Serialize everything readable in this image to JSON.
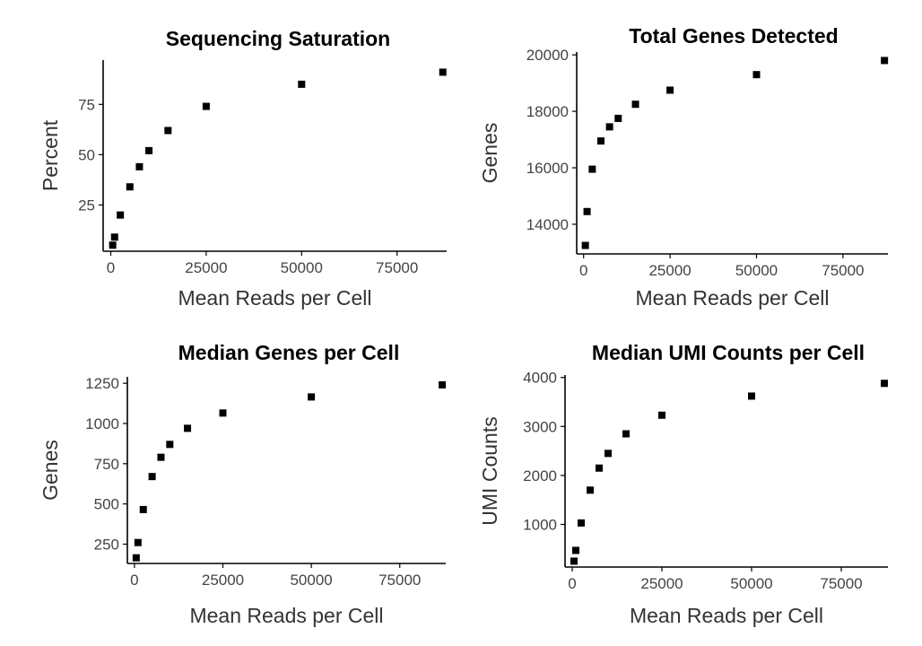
{
  "chart_data": [
    {
      "type": "scatter",
      "title": "Sequencing Saturation",
      "xlabel": "Mean Reads per Cell",
      "ylabel": "Percent",
      "xlim": [
        -2000,
        88000
      ],
      "ylim": [
        2,
        97
      ],
      "xticks": [
        0,
        25000,
        50000,
        75000
      ],
      "xtick_labels": [
        "0",
        "25000",
        "50000",
        "75000"
      ],
      "yticks": [
        25,
        50,
        75
      ],
      "ytick_labels": [
        "25",
        "50",
        "75"
      ],
      "grid": false,
      "x": [
        500,
        1000,
        2500,
        5000,
        7500,
        10000,
        15000,
        25000,
        50000,
        87000
      ],
      "y": [
        5,
        9,
        20,
        34,
        44,
        52,
        62,
        74,
        85,
        91
      ]
    },
    {
      "type": "scatter",
      "title": "Total Genes Detected",
      "xlabel": "Mean Reads per Cell",
      "ylabel": "Genes",
      "xlim": [
        -2000,
        88000
      ],
      "ylim": [
        12950,
        20100
      ],
      "xticks": [
        0,
        25000,
        50000,
        75000
      ],
      "xtick_labels": [
        "0",
        "25000",
        "50000",
        "75000"
      ],
      "yticks": [
        14000,
        16000,
        18000,
        20000
      ],
      "ytick_labels": [
        "14000",
        "16000",
        "18000",
        "20000"
      ],
      "grid": false,
      "x": [
        500,
        1000,
        2500,
        5000,
        7500,
        10000,
        15000,
        25000,
        50000,
        87000
      ],
      "y": [
        13250,
        14450,
        15950,
        16950,
        17450,
        17750,
        18250,
        18750,
        19300,
        19800
      ]
    },
    {
      "type": "scatter",
      "title": "Median Genes per Cell",
      "xlabel": "Mean Reads per Cell",
      "ylabel": "Genes",
      "xlim": [
        -2000,
        88000
      ],
      "ylim": [
        130,
        1290
      ],
      "xticks": [
        0,
        25000,
        50000,
        75000
      ],
      "xtick_labels": [
        "0",
        "25000",
        "50000",
        "75000"
      ],
      "yticks": [
        250,
        500,
        750,
        1000,
        1250
      ],
      "ytick_labels": [
        "250",
        "500",
        "750",
        "1000",
        "1250"
      ],
      "grid": false,
      "x": [
        500,
        1000,
        2500,
        5000,
        7500,
        10000,
        15000,
        25000,
        50000,
        87000
      ],
      "y": [
        165,
        260,
        465,
        670,
        790,
        870,
        970,
        1065,
        1165,
        1240
      ]
    },
    {
      "type": "scatter",
      "title": "Median UMI Counts per Cell",
      "xlabel": "Mean Reads per Cell",
      "ylabel": "UMI Counts",
      "xlim": [
        -2000,
        88000
      ],
      "ylim": [
        130,
        4050
      ],
      "xticks": [
        0,
        25000,
        50000,
        75000
      ],
      "xtick_labels": [
        "0",
        "25000",
        "50000",
        "75000"
      ],
      "yticks": [
        1000,
        2000,
        3000,
        4000
      ],
      "ytick_labels": [
        "1000",
        "2000",
        "3000",
        "4000"
      ],
      "grid": false,
      "x": [
        500,
        1000,
        2500,
        5000,
        7500,
        10000,
        15000,
        25000,
        50000,
        87000
      ],
      "y": [
        250,
        470,
        1030,
        1700,
        2150,
        2450,
        2850,
        3230,
        3620,
        3880
      ]
    }
  ]
}
